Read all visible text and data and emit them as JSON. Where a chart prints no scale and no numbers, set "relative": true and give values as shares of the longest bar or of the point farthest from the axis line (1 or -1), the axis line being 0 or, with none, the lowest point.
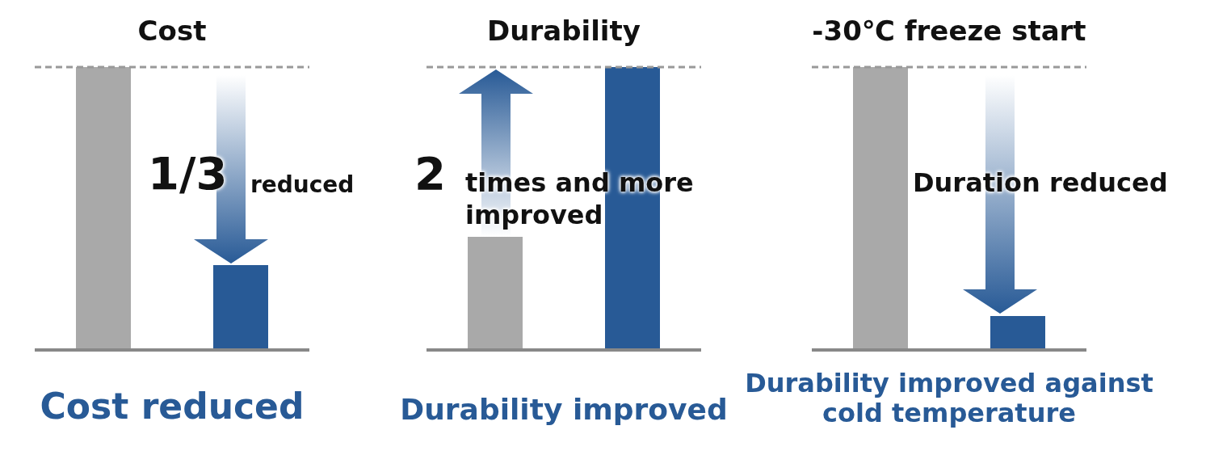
{
  "chart_data": [
    {
      "type": "bar",
      "title": "Cost",
      "xlabel": "Cost reduced",
      "relative": true,
      "categories": [
        null,
        null
      ],
      "values": [
        1,
        0.3
      ],
      "colors": [
        "#a9a9a9",
        "#285a96"
      ],
      "ref_lines": [
        {
          "axis": "y",
          "value": 1,
          "color": "#999999",
          "line_style": "dashed"
        }
      ],
      "annotations": [
        "1/3",
        "reduced"
      ]
    },
    {
      "type": "bar",
      "title": "Durability",
      "xlabel": "Durability improved",
      "relative": true,
      "categories": [
        null,
        null
      ],
      "values": [
        0.4,
        1
      ],
      "colors": [
        "#a9a9a9",
        "#285a96"
      ],
      "ref_lines": [
        {
          "axis": "y",
          "value": 1,
          "color": "#999999",
          "line_style": "dashed"
        }
      ],
      "annotations": [
        "2",
        "times and more improved"
      ]
    },
    {
      "type": "bar",
      "title": "-30℃ freeze start",
      "xlabel": "Durability improved against cold temperature",
      "relative": true,
      "categories": [
        null,
        null
      ],
      "values": [
        1,
        0.12
      ],
      "colors": [
        "#a9a9a9",
        "#285a96"
      ],
      "ref_lines": [
        {
          "axis": "y",
          "value": 1,
          "color": "#999999",
          "line_style": "dashed"
        }
      ],
      "annotations": [
        "Duration reduced"
      ]
    }
  ]
}
